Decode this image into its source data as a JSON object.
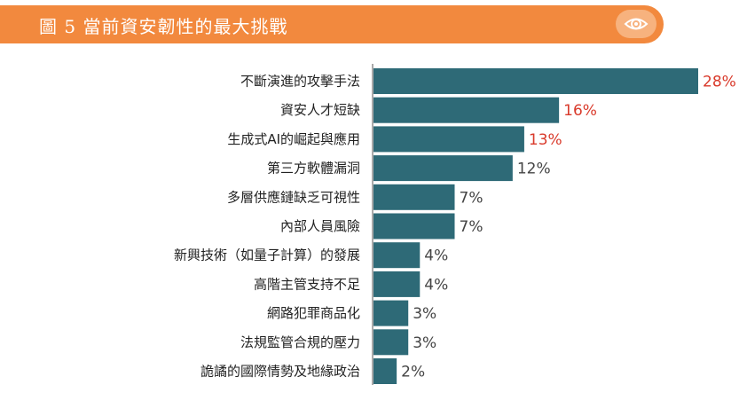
{
  "header": {
    "title": "圖 5 當前資安韌性的最大挑戰",
    "icon": "eye-icon"
  },
  "colors": {
    "header_bg": "#f2893e",
    "bar": "#2e6a77",
    "highlight_value": "#d93a2b",
    "normal_value": "#444444"
  },
  "chart_data": {
    "type": "bar",
    "orientation": "horizontal",
    "title": "當前資安韌性的最大挑戰",
    "xlabel": "",
    "ylabel": "",
    "xlim": [
      0,
      28
    ],
    "categories": [
      "不斷演進的攻擊手法",
      "資安人才短缺",
      "生成式AI的崛起與應用",
      "第三方軟體漏洞",
      "多層供應鏈缺乏可視性",
      "內部人員風險",
      "新興技術（如量子計算）的發展",
      "高階主管支持不足",
      "網路犯罪商品化",
      "法規監管合規的壓力",
      "詭譎的國際情勢及地緣政治"
    ],
    "values": [
      28,
      16,
      13,
      12,
      7,
      7,
      4,
      4,
      3,
      3,
      2
    ],
    "value_labels": [
      "28%",
      "16%",
      "13%",
      "12%",
      "7%",
      "7%",
      "4%",
      "4%",
      "3%",
      "3%",
      "2%"
    ],
    "highlighted": [
      true,
      true,
      true,
      false,
      false,
      false,
      false,
      false,
      false,
      false,
      false
    ]
  }
}
